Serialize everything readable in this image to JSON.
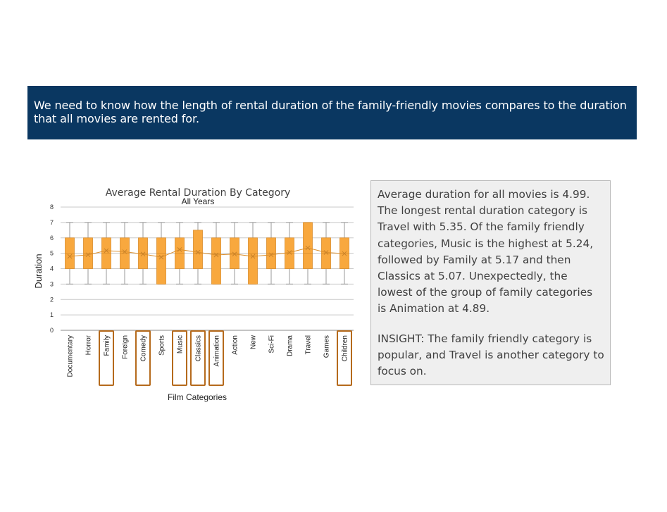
{
  "banner": {
    "text": "We need to know how the length of rental duration of the family-friendly movies compares to the duration that all movies are rented for."
  },
  "insight": {
    "paragraph1": "Average duration for all movies is 4.99. The longest rental duration category is Travel with 5.35. Of the family friendly categories, Music is the highest at 5.24, followed by Family at 5.17 and then Classics at 5.07.  Unexpectedly, the lowest of the group of family categories is Animation at 4.89.",
    "paragraph2": "INSIGHT: The family friendly category is popular, and Travel is another category to focus on."
  },
  "colors": {
    "banner": "#0a3761",
    "box_fill": "#f8a83e",
    "box_stroke": "#d98d2b",
    "highlight": "#b56a1c"
  },
  "chart_data": {
    "type": "box",
    "title": "Average Rental Duration By Category",
    "subtitle": "All Years",
    "xlabel": "Film Categories",
    "ylabel": "Duration",
    "ylim": [
      0,
      8
    ],
    "yticks": [
      0,
      1,
      2,
      3,
      4,
      5,
      6,
      7,
      8
    ],
    "grid": true,
    "categories": [
      "Documentary",
      "Horror",
      "Family",
      "Foreign",
      "Comedy",
      "Sports",
      "Music",
      "Classics",
      "Animation",
      "Action",
      "New",
      "Sci-Fi",
      "Drama",
      "Travel",
      "Games",
      "Children"
    ],
    "highlighted": [
      "Family",
      "Comedy",
      "Music",
      "Classics",
      "Animation",
      "Children"
    ],
    "boxes": [
      {
        "category": "Documentary",
        "min": 3,
        "q1": 4,
        "median": 5,
        "q3": 6,
        "max": 7,
        "mean": 4.8
      },
      {
        "category": "Horror",
        "min": 3,
        "q1": 4,
        "median": 5,
        "q3": 6,
        "max": 7,
        "mean": 4.9
      },
      {
        "category": "Family",
        "min": 3,
        "q1": 4,
        "median": 5,
        "q3": 6,
        "max": 7,
        "mean": 5.17
      },
      {
        "category": "Foreign",
        "min": 3,
        "q1": 4,
        "median": 5,
        "q3": 6,
        "max": 7,
        "mean": 5.1
      },
      {
        "category": "Comedy",
        "min": 3,
        "q1": 4,
        "median": 5,
        "q3": 6,
        "max": 7,
        "mean": 4.95
      },
      {
        "category": "Sports",
        "min": 3,
        "q1": 3,
        "median": 5,
        "q3": 6,
        "max": 7,
        "mean": 4.75
      },
      {
        "category": "Music",
        "min": 3,
        "q1": 4,
        "median": 5,
        "q3": 6,
        "max": 7,
        "mean": 5.24
      },
      {
        "category": "Classics",
        "min": 3,
        "q1": 4,
        "median": 5,
        "q3": 6.5,
        "max": 7,
        "mean": 5.07
      },
      {
        "category": "Animation",
        "min": 3,
        "q1": 3,
        "median": 5,
        "q3": 6,
        "max": 7,
        "mean": 4.89
      },
      {
        "category": "Action",
        "min": 3,
        "q1": 4,
        "median": 5,
        "q3": 6,
        "max": 7,
        "mean": 4.95
      },
      {
        "category": "New",
        "min": 3,
        "q1": 3,
        "median": 5,
        "q3": 6,
        "max": 7,
        "mean": 4.8
      },
      {
        "category": "Sci-Fi",
        "min": 3,
        "q1": 4,
        "median": 5,
        "q3": 6,
        "max": 7,
        "mean": 4.9
      },
      {
        "category": "Drama",
        "min": 3,
        "q1": 4,
        "median": 5,
        "q3": 6,
        "max": 7,
        "mean": 5.05
      },
      {
        "category": "Travel",
        "min": 3,
        "q1": 4,
        "median": 5,
        "q3": 7,
        "max": 7,
        "mean": 5.35
      },
      {
        "category": "Games",
        "min": 3,
        "q1": 4,
        "median": 5,
        "q3": 6,
        "max": 7,
        "mean": 5.05
      },
      {
        "category": "Children",
        "min": 3,
        "q1": 4,
        "median": 5,
        "q3": 6,
        "max": 7,
        "mean": 4.98
      }
    ]
  }
}
